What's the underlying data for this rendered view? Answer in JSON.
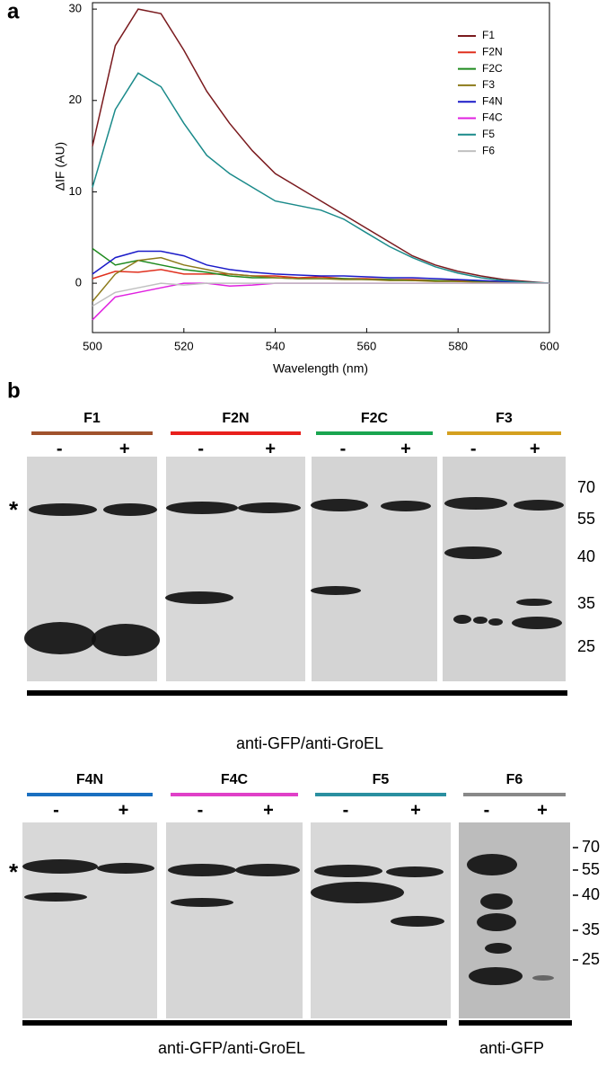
{
  "chart_data": {
    "type": "line",
    "panel_label": "a",
    "xlabel": "Wavelength (nm)",
    "ylabel": "ΔIF (AU)",
    "x": [
      500,
      505,
      510,
      515,
      520,
      525,
      530,
      535,
      540,
      545,
      550,
      555,
      560,
      565,
      570,
      575,
      580,
      585,
      590,
      595,
      600
    ],
    "xlim": [
      500,
      600
    ],
    "xticks": [
      500,
      520,
      540,
      560,
      580,
      600
    ],
    "ylim": [
      -5.4,
      30.7
    ],
    "yticks": [
      0,
      10,
      20,
      30
    ],
    "legend": "upper right",
    "series": [
      {
        "name": "F1",
        "color": "#7a1a1e",
        "values": [
          15,
          26,
          30,
          29.5,
          25.5,
          21,
          17.5,
          14.5,
          12,
          10.5,
          9,
          7.5,
          6,
          4.5,
          3,
          2,
          1.3,
          0.8,
          0.4,
          0.2,
          0
        ]
      },
      {
        "name": "F2N",
        "color": "#e0301e",
        "values": [
          0.5,
          1.3,
          1.2,
          1.5,
          1,
          1,
          1,
          0.8,
          0.8,
          0.6,
          0.7,
          0.5,
          0.5,
          0.4,
          0.4,
          0.3,
          0.3,
          0.2,
          0.1,
          0.1,
          0
        ]
      },
      {
        "name": "F2C",
        "color": "#1e8a1e",
        "values": [
          3.8,
          2,
          2.5,
          2,
          1.5,
          1.2,
          0.8,
          0.6,
          0.6,
          0.5,
          0.5,
          0.5,
          0.4,
          0.4,
          0.3,
          0.3,
          0.2,
          0.2,
          0.1,
          0.1,
          0
        ]
      },
      {
        "name": "F3",
        "color": "#8c7a1a",
        "values": [
          -2,
          1,
          2.5,
          2.8,
          2,
          1.5,
          1,
          0.8,
          0.6,
          0.5,
          0.5,
          0.4,
          0.4,
          0.3,
          0.3,
          0.2,
          0.2,
          0.1,
          0.1,
          0,
          0
        ]
      },
      {
        "name": "F4N",
        "color": "#1a1ac8",
        "values": [
          1,
          2.8,
          3.5,
          3.5,
          3,
          2,
          1.5,
          1.2,
          1,
          0.9,
          0.8,
          0.8,
          0.7,
          0.6,
          0.6,
          0.5,
          0.4,
          0.3,
          0.2,
          0.1,
          0
        ]
      },
      {
        "name": "F4C",
        "color": "#e020e0",
        "values": [
          -4,
          -1.5,
          -1,
          -0.5,
          0,
          0,
          -0.3,
          -0.2,
          0,
          0,
          0,
          0,
          0,
          0,
          0,
          0,
          0,
          0,
          0,
          0,
          0
        ]
      },
      {
        "name": "F5",
        "color": "#1a8a8a",
        "values": [
          10.5,
          19,
          23,
          21.5,
          17.5,
          14,
          12,
          10.5,
          9,
          8.5,
          8,
          7,
          5.5,
          4,
          2.8,
          1.8,
          1.1,
          0.6,
          0.3,
          0.1,
          0
        ]
      },
      {
        "name": "F6",
        "color": "#c0c0c0",
        "values": [
          -2.5,
          -1,
          -0.5,
          0,
          -0.2,
          0,
          0,
          0,
          0,
          0,
          0,
          0,
          0,
          0,
          0,
          0,
          0,
          0,
          0,
          0,
          0
        ]
      }
    ]
  },
  "blots": {
    "panel_label": "b",
    "rows": [
      {
        "asterisk": "*",
        "markers": [
          "70",
          "55",
          "40",
          "35",
          "25"
        ],
        "lanes": [
          {
            "name": "F1",
            "color": "#a0522d",
            "signs": [
              "-",
              "+"
            ]
          },
          {
            "name": "F2N",
            "color": "#e8201c",
            "signs": [
              "-",
              "+"
            ]
          },
          {
            "name": "F2C",
            "color": "#1aa550",
            "signs": [
              "-",
              "+"
            ]
          },
          {
            "name": "F3",
            "color": "#d4a020",
            "signs": [
              "-",
              "+"
            ]
          }
        ],
        "antibodies": [
          "anti-GFP/anti-GroEL"
        ]
      },
      {
        "asterisk": "*",
        "markers": [
          "70",
          "55",
          "40",
          "35",
          "25"
        ],
        "lanes": [
          {
            "name": "F4N",
            "color": "#1a6fc0",
            "signs": [
              "-",
              "+"
            ]
          },
          {
            "name": "F4C",
            "color": "#e040c8",
            "signs": [
              "-",
              "+"
            ]
          },
          {
            "name": "F5",
            "color": "#2a8fa0",
            "signs": [
              "-",
              "+"
            ]
          },
          {
            "name": "F6",
            "color": "#888888",
            "signs": [
              "-",
              "+"
            ]
          }
        ],
        "antibodies": [
          "anti-GFP/anti-GroEL",
          "anti-GFP"
        ]
      }
    ]
  }
}
